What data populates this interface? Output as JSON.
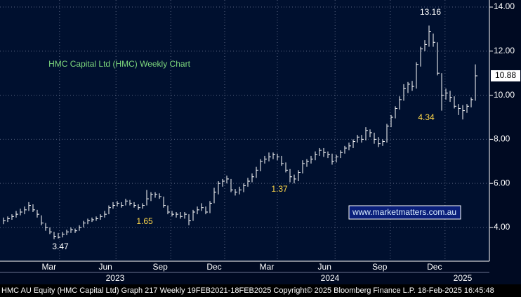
{
  "chart_data": {
    "type": "ohlc",
    "title": "HMC Capital Ltd (HMC) Weekly Chart",
    "watermark": "www.marketmatters.com.au",
    "footer": "HMC AU Equity (HMC Capital Ltd) Graph 217  Weekly 19FEB2021-18FEB2025   Copyright© 2025 Bloomberg Finance L.P.   18-Feb-2025 16:45:48",
    "annotations": [
      "13.16",
      "4.34",
      "1.37",
      "1.65",
      "3.47"
    ],
    "categories": [
      null,
      null,
      null,
      null,
      null,
      null,
      null,
      null,
      null,
      null,
      null,
      null,
      null,
      null,
      null,
      null,
      null,
      null,
      null,
      null,
      null,
      null,
      null,
      null,
      null,
      null,
      null,
      null,
      null,
      null,
      null,
      null,
      null,
      null,
      null,
      null,
      null,
      null,
      null,
      null,
      null,
      null,
      null,
      null,
      null,
      null,
      null,
      null,
      null,
      null,
      null,
      null,
      null,
      null,
      null,
      null,
      null,
      null,
      null,
      null,
      null,
      null,
      null,
      null,
      null,
      null,
      null,
      null,
      null,
      null,
      null,
      null,
      null,
      null,
      null,
      null,
      null,
      null,
      null,
      null,
      null,
      null,
      null,
      null,
      null,
      null,
      null,
      null,
      null,
      null,
      null,
      null,
      null,
      null,
      null,
      null,
      null,
      null,
      null,
      null,
      null,
      null,
      null,
      null,
      null,
      null,
      null,
      null,
      null,
      null,
      null,
      null,
      null
    ],
    "high": [
      4.45,
      4.5,
      4.6,
      4.75,
      4.85,
      4.95,
      5.15,
      5.05,
      4.8,
      4.55,
      4.2,
      4.0,
      3.8,
      3.75,
      3.8,
      3.9,
      4.0,
      3.95,
      4.1,
      4.3,
      4.4,
      4.45,
      4.5,
      4.6,
      4.75,
      5.0,
      5.15,
      5.2,
      5.15,
      5.3,
      5.25,
      5.15,
      5.05,
      5.1,
      5.7,
      5.6,
      5.6,
      5.55,
      5.4,
      5.0,
      4.75,
      4.7,
      4.7,
      4.7,
      4.6,
      4.8,
      4.95,
      5.1,
      4.95,
      5.2,
      5.8,
      6.1,
      6.2,
      6.35,
      6.2,
      5.75,
      5.85,
      6.0,
      6.25,
      6.45,
      6.75,
      7.1,
      7.25,
      7.4,
      7.4,
      7.35,
      7.25,
      6.95,
      6.65,
      6.4,
      6.6,
      7.05,
      7.1,
      7.25,
      7.45,
      7.6,
      7.6,
      7.45,
      7.35,
      7.3,
      7.5,
      7.7,
      7.85,
      8.0,
      8.2,
      8.2,
      8.55,
      8.45,
      8.3,
      8.1,
      8.0,
      8.7,
      9.1,
      9.5,
      9.95,
      10.5,
      10.6,
      10.65,
      11.5,
      12.2,
      12.5,
      13.16,
      12.8,
      12.4,
      11.0,
      10.3,
      10.2,
      9.95,
      9.6,
      9.55,
      9.6,
      9.9,
      11.4
    ],
    "low": [
      4.15,
      4.25,
      4.35,
      4.45,
      4.55,
      4.6,
      4.75,
      4.7,
      4.45,
      4.1,
      3.85,
      3.7,
      3.47,
      3.5,
      3.55,
      3.65,
      3.75,
      3.75,
      3.85,
      4.0,
      4.15,
      4.25,
      4.3,
      4.35,
      4.45,
      4.6,
      4.85,
      4.95,
      4.9,
      5.0,
      5.0,
      4.9,
      4.8,
      4.85,
      5.0,
      5.2,
      5.35,
      5.3,
      4.9,
      4.6,
      4.5,
      4.45,
      4.4,
      4.4,
      4.1,
      4.3,
      4.6,
      4.75,
      4.6,
      4.65,
      5.1,
      5.5,
      5.85,
      6.0,
      5.6,
      5.45,
      5.5,
      5.6,
      5.85,
      6.05,
      6.25,
      6.55,
      6.9,
      7.0,
      7.1,
      7.05,
      6.8,
      6.5,
      6.05,
      6.0,
      6.1,
      6.45,
      6.75,
      6.9,
      7.05,
      7.25,
      7.2,
      7.15,
      6.85,
      6.95,
      7.15,
      7.35,
      7.5,
      7.6,
      7.85,
      7.85,
      7.95,
      8.1,
      7.8,
      7.65,
      7.7,
      7.85,
      8.55,
      8.95,
      9.35,
      9.75,
      10.1,
      10.2,
      10.3,
      11.3,
      12.0,
      12.2,
      12.2,
      10.9,
      9.3,
      9.8,
      9.7,
      9.4,
      9.1,
      8.9,
      9.2,
      9.45,
      9.75
    ],
    "close": [
      4.3,
      4.4,
      4.5,
      4.6,
      4.7,
      4.8,
      5.0,
      4.8,
      4.6,
      4.2,
      4.0,
      3.8,
      3.6,
      3.55,
      3.7,
      3.8,
      3.9,
      3.85,
      4.0,
      4.2,
      4.3,
      4.35,
      4.4,
      4.5,
      4.6,
      4.9,
      5.0,
      5.1,
      5.0,
      5.2,
      5.1,
      5.0,
      4.9,
      5.0,
      5.3,
      5.5,
      5.5,
      5.4,
      5.0,
      4.7,
      4.6,
      4.6,
      4.5,
      4.6,
      4.3,
      4.7,
      4.8,
      4.9,
      4.7,
      5.1,
      5.6,
      6.0,
      6.1,
      6.2,
      5.7,
      5.6,
      5.7,
      5.9,
      6.1,
      6.3,
      6.6,
      7.0,
      7.1,
      7.2,
      7.3,
      7.2,
      6.9,
      6.6,
      6.3,
      6.2,
      6.5,
      6.9,
      7.0,
      7.1,
      7.3,
      7.5,
      7.4,
      7.3,
      7.0,
      7.2,
      7.4,
      7.6,
      7.7,
      7.9,
      8.1,
      8.0,
      8.4,
      8.3,
      8.0,
      7.8,
      7.9,
      8.6,
      9.0,
      9.4,
      9.8,
      10.3,
      10.5,
      10.4,
      11.4,
      12.1,
      12.3,
      12.9,
      12.4,
      11.0,
      10.0,
      10.1,
      9.9,
      9.5,
      9.4,
      9.3,
      9.5,
      9.8,
      10.88
    ],
    "color": "#ffffff",
    "xlim": [
      -0.83,
      115.33
    ],
    "xticks": [
      {
        "value": 10.8,
        "label": "Mar"
      },
      {
        "value": 24.2,
        "label": "Jun"
      },
      {
        "value": 37.2,
        "label": "Sep"
      },
      {
        "value": 50,
        "label": "Dec"
      },
      {
        "value": 62.5,
        "label": "Mar"
      },
      {
        "value": 76.2,
        "label": "Jun"
      },
      {
        "value": 89.3,
        "label": "Sep"
      },
      {
        "value": 102.3,
        "label": "Dec"
      }
    ],
    "years": [
      {
        "value": 26.5,
        "label": "2023"
      },
      {
        "value": 77.5,
        "label": "2024"
      },
      {
        "value": 109,
        "label": "2025"
      }
    ],
    "ylim": [
      2.47,
      14.32
    ],
    "yticks": [
      {
        "value": 4,
        "label": "4.00"
      },
      {
        "value": 6,
        "label": "6.00"
      },
      {
        "value": 8,
        "label": "8.00"
      },
      {
        "value": 10,
        "label": "10.00"
      },
      {
        "value": 12,
        "label": "12.00"
      },
      {
        "value": 14,
        "label": "14.00"
      }
    ],
    "grid": true
  }
}
